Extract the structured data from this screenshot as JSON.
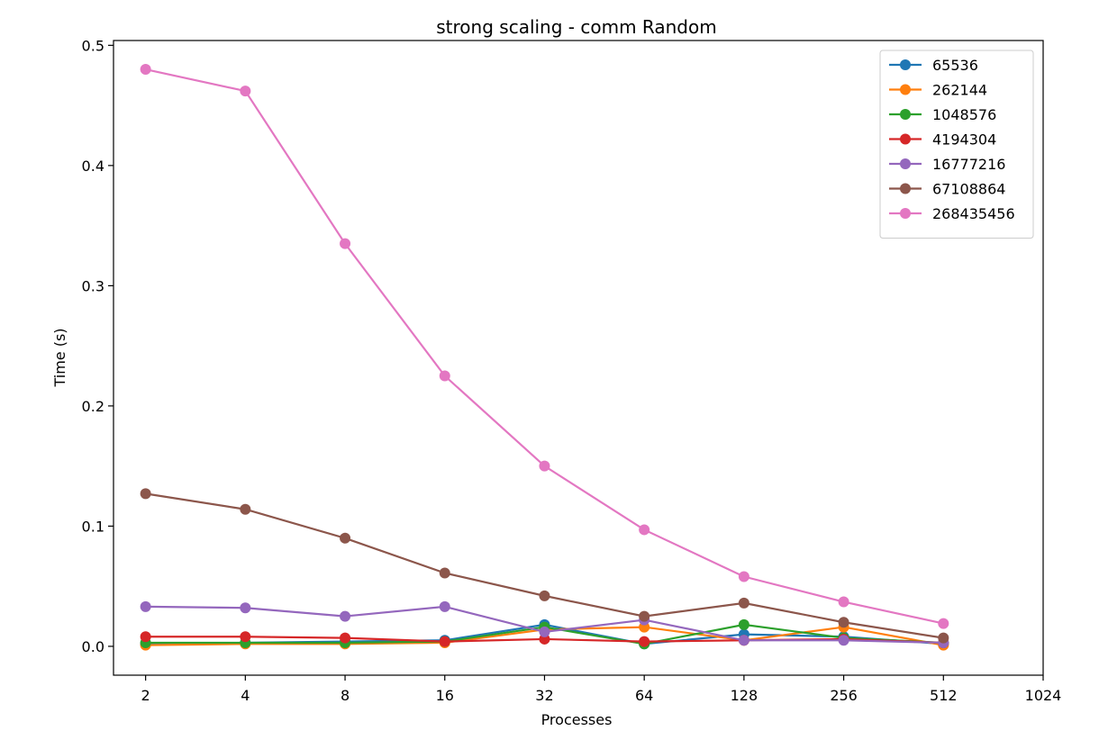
{
  "chart_data": {
    "type": "line",
    "title": "strong scaling - comm  Random",
    "xlabel": "Processes",
    "ylabel": "Time (s)",
    "x_scale": "log2",
    "x": [
      2,
      4,
      8,
      16,
      32,
      64,
      128,
      256,
      512
    ],
    "xticks": [
      "2",
      "4",
      "8",
      "16",
      "32",
      "64",
      "128",
      "256",
      "512",
      "1024"
    ],
    "xlim": [
      1.6,
      1024
    ],
    "yticks": [
      "0.0",
      "0.1",
      "0.2",
      "0.3",
      "0.4",
      "0.5"
    ],
    "ylim": [
      -0.024,
      0.504
    ],
    "legend_position": "top-right",
    "grid": false,
    "series": [
      {
        "name": "65536",
        "color": "#1f77b4",
        "values": [
          0.002,
          0.003,
          0.004,
          0.005,
          0.018,
          0.002,
          0.01,
          0.008,
          0.002
        ]
      },
      {
        "name": "262144",
        "color": "#ff7f0e",
        "values": [
          0.001,
          0.002,
          0.002,
          0.003,
          0.014,
          0.016,
          0.005,
          0.016,
          0.001
        ]
      },
      {
        "name": "1048576",
        "color": "#2ca02c",
        "values": [
          0.003,
          0.003,
          0.003,
          0.004,
          0.016,
          0.002,
          0.018,
          0.007,
          0.003
        ]
      },
      {
        "name": "4194304",
        "color": "#d62728",
        "values": [
          0.008,
          0.008,
          0.007,
          0.004,
          0.006,
          0.004,
          0.005,
          0.006,
          0.003
        ]
      },
      {
        "name": "16777216",
        "color": "#9467bd",
        "values": [
          0.033,
          0.032,
          0.025,
          0.033,
          0.012,
          0.022,
          0.005,
          0.005,
          0.003
        ]
      },
      {
        "name": "67108864",
        "color": "#8c564b",
        "values": [
          0.127,
          0.114,
          0.09,
          0.061,
          0.042,
          0.025,
          0.036,
          0.02,
          0.007
        ]
      },
      {
        "name": "268435456",
        "color": "#e377c2",
        "values": [
          0.48,
          0.462,
          0.335,
          0.225,
          0.15,
          0.097,
          0.058,
          0.037,
          0.019
        ]
      }
    ]
  }
}
